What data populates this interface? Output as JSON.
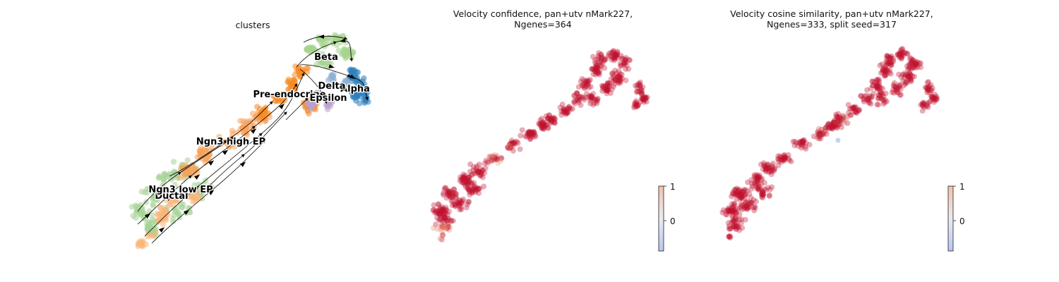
{
  "chart_data": [
    {
      "type": "scatter",
      "title": "clusters",
      "legend": "on data",
      "grid": false,
      "axes_visible": false,
      "streamlines": true,
      "clusters": [
        {
          "name": "Ductal",
          "color": "#f9b477"
        },
        {
          "name": "Ngn3 low EP",
          "color": "#a6d395"
        },
        {
          "name": "Ngn3 high EP",
          "color": "#f7a05a"
        },
        {
          "name": "Pre-endocrine",
          "color": "#f58a25"
        },
        {
          "name": "Beta",
          "color": "#a5d38e"
        },
        {
          "name": "Alpha",
          "color": "#2f82bd"
        },
        {
          "name": "Delta",
          "color": "#8fb0d5"
        },
        {
          "name": "Epsilon",
          "color": "#b9a3cd"
        }
      ]
    },
    {
      "type": "scatter",
      "title": "Velocity confidence, pan+utv nMark227,\nNgenes=364",
      "grid": false,
      "axes_visible": false,
      "colormap": "coolwarm",
      "dominant_color": "#c0122e",
      "colorbar": {
        "ticks": [
          "1",
          "0"
        ],
        "range": [
          -1,
          1
        ]
      }
    },
    {
      "type": "scatter",
      "title": "Velocity cosine similarity, pan+utv nMark227,\nNgenes=333, split seed=317",
      "grid": false,
      "axes_visible": false,
      "colormap": "coolwarm",
      "dominant_color": "#c0122e",
      "colorbar": {
        "ticks": [
          "1",
          "0"
        ],
        "range": [
          -1,
          1
        ]
      }
    }
  ]
}
